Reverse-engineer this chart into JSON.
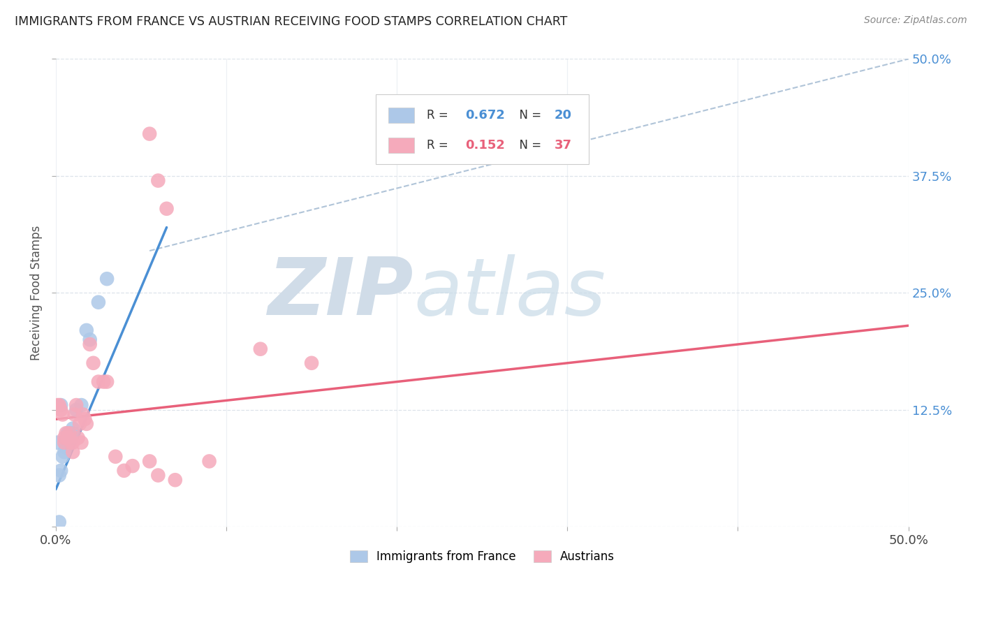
{
  "title": "IMMIGRANTS FROM FRANCE VS AUSTRIAN RECEIVING FOOD STAMPS CORRELATION CHART",
  "source": "Source: ZipAtlas.com",
  "ylabel": "Receiving Food Stamps",
  "xlim": [
    0.0,
    0.5
  ],
  "ylim": [
    0.0,
    0.5
  ],
  "xticks": [
    0.0,
    0.1,
    0.2,
    0.3,
    0.4,
    0.5
  ],
  "yticks": [
    0.0,
    0.125,
    0.25,
    0.375,
    0.5
  ],
  "xticklabels": [
    "0.0%",
    "",
    "",
    "",
    "",
    "50.0%"
  ],
  "yticklabels_right": [
    "",
    "12.5%",
    "25.0%",
    "37.5%",
    "50.0%"
  ],
  "france_R": 0.672,
  "france_N": 20,
  "austria_R": 0.152,
  "austria_N": 37,
  "france_color": "#adc8e8",
  "austria_color": "#f5aabb",
  "france_line_color": "#4a8fd4",
  "austria_line_color": "#e8607a",
  "dashed_line_color": "#b0c4d8",
  "background_color": "#ffffff",
  "grid_color": "#dde3ea",
  "france_points": [
    [
      0.002,
      0.055
    ],
    [
      0.003,
      0.06
    ],
    [
      0.004,
      0.075
    ],
    [
      0.005,
      0.08
    ],
    [
      0.006,
      0.085
    ],
    [
      0.007,
      0.09
    ],
    [
      0.007,
      0.1
    ],
    [
      0.008,
      0.095
    ],
    [
      0.009,
      0.095
    ],
    [
      0.01,
      0.105
    ],
    [
      0.01,
      0.1
    ],
    [
      0.012,
      0.125
    ],
    [
      0.015,
      0.13
    ],
    [
      0.018,
      0.21
    ],
    [
      0.02,
      0.2
    ],
    [
      0.025,
      0.24
    ],
    [
      0.03,
      0.265
    ],
    [
      0.002,
      0.005
    ],
    [
      0.003,
      0.13
    ],
    [
      0.001,
      0.09
    ]
  ],
  "austria_points": [
    [
      0.001,
      0.13
    ],
    [
      0.002,
      0.13
    ],
    [
      0.003,
      0.125
    ],
    [
      0.004,
      0.12
    ],
    [
      0.005,
      0.095
    ],
    [
      0.005,
      0.09
    ],
    [
      0.006,
      0.1
    ],
    [
      0.007,
      0.095
    ],
    [
      0.008,
      0.1
    ],
    [
      0.009,
      0.09
    ],
    [
      0.01,
      0.09
    ],
    [
      0.01,
      0.08
    ],
    [
      0.011,
      0.12
    ],
    [
      0.012,
      0.13
    ],
    [
      0.013,
      0.095
    ],
    [
      0.014,
      0.11
    ],
    [
      0.015,
      0.09
    ],
    [
      0.016,
      0.12
    ],
    [
      0.017,
      0.115
    ],
    [
      0.018,
      0.11
    ],
    [
      0.02,
      0.195
    ],
    [
      0.022,
      0.175
    ],
    [
      0.025,
      0.155
    ],
    [
      0.028,
      0.155
    ],
    [
      0.03,
      0.155
    ],
    [
      0.035,
      0.075
    ],
    [
      0.04,
      0.06
    ],
    [
      0.045,
      0.065
    ],
    [
      0.055,
      0.07
    ],
    [
      0.06,
      0.055
    ],
    [
      0.07,
      0.05
    ],
    [
      0.09,
      0.07
    ],
    [
      0.12,
      0.19
    ],
    [
      0.15,
      0.175
    ],
    [
      0.055,
      0.42
    ],
    [
      0.06,
      0.37
    ],
    [
      0.065,
      0.34
    ]
  ],
  "france_line_x": [
    0.0,
    0.065
  ],
  "france_line_y": [
    0.04,
    0.32
  ],
  "austria_line_x": [
    0.0,
    0.5
  ],
  "austria_line_y": [
    0.115,
    0.215
  ],
  "dashed_line_x": [
    0.055,
    0.5
  ],
  "dashed_line_y": [
    0.295,
    0.5
  ],
  "watermark_zip": "ZIP",
  "watermark_atlas": "atlas",
  "watermark_color": "#d0dce8"
}
